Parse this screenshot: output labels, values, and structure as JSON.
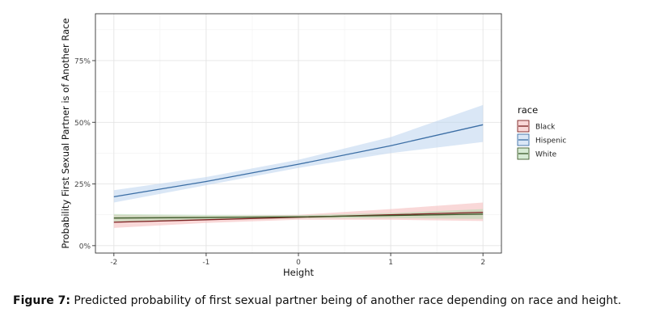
{
  "chart_data": {
    "type": "line",
    "xlabel": "Height",
    "ylabel": "Probability First Sexual Partner is of Another Race",
    "xlim": [
      -2.2,
      2.2
    ],
    "ylim": [
      -0.03,
      0.94
    ],
    "xticks": [
      {
        "value": -2,
        "label": "-2"
      },
      {
        "value": -1,
        "label": "-1"
      },
      {
        "value": 0,
        "label": "0"
      },
      {
        "value": 1,
        "label": "1"
      },
      {
        "value": 2,
        "label": "2"
      }
    ],
    "yticks": [
      {
        "value": 0,
        "label": "0%"
      },
      {
        "value": 0.25,
        "label": "25%"
      },
      {
        "value": 0.5,
        "label": "50%"
      },
      {
        "value": 0.75,
        "label": "75%"
      }
    ],
    "grid": true,
    "legend": {
      "title": "race",
      "placement": "right"
    },
    "series": [
      {
        "name": "Black",
        "line_color": "#7a1f1f",
        "band_color": "#f4b8b8",
        "x": [
          -2,
          -1,
          0,
          1,
          2
        ],
        "y": [
          0.095,
          0.105,
          0.115,
          0.125,
          0.135
        ],
        "lower": [
          0.072,
          0.092,
          0.105,
          0.105,
          0.1
        ],
        "upper": [
          0.125,
          0.12,
          0.125,
          0.148,
          0.175
        ]
      },
      {
        "name": "Hispenic",
        "line_color": "#3b6ea5",
        "band_color": "#bcd3ee",
        "x": [
          -2,
          -1,
          0,
          1,
          2
        ],
        "y": [
          0.198,
          0.26,
          0.33,
          0.405,
          0.49
        ],
        "lower": [
          0.175,
          0.245,
          0.315,
          0.375,
          0.42
        ],
        "upper": [
          0.225,
          0.278,
          0.348,
          0.44,
          0.57
        ]
      },
      {
        "name": "White",
        "line_color": "#3d5a2a",
        "band_color": "#b5dbb0",
        "x": [
          -2,
          -1,
          0,
          1,
          2
        ],
        "y": [
          0.112,
          0.114,
          0.117,
          0.122,
          0.128
        ],
        "lower": [
          0.098,
          0.104,
          0.111,
          0.112,
          0.108
        ],
        "upper": [
          0.128,
          0.124,
          0.123,
          0.132,
          0.148
        ]
      }
    ]
  },
  "caption": {
    "label": "Figure 7:",
    "text": " Predicted probability of first sexual partner being of another race depending on race and height."
  }
}
